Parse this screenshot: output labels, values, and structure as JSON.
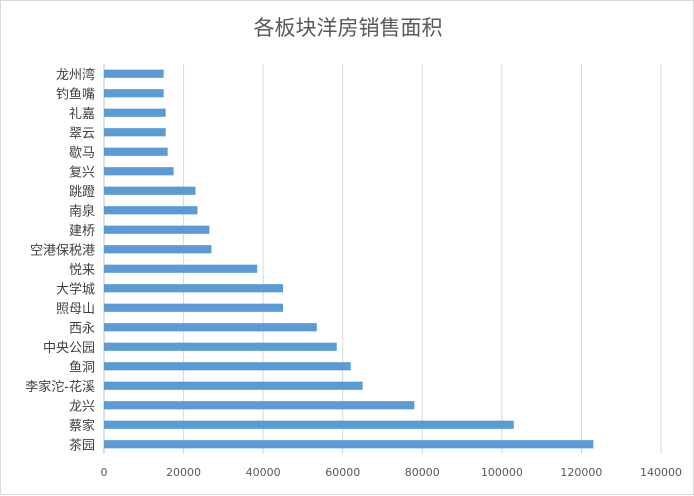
{
  "chart_data": {
    "type": "bar",
    "orientation": "horizontal",
    "title": "各板块洋房销售面积",
    "xlabel": "",
    "ylabel": "",
    "categories": [
      "茶园",
      "蔡家",
      "龙兴",
      "李家沱-花溪",
      "鱼洞",
      "中央公园",
      "西永",
      "照母山",
      "大学城",
      "悦来",
      "空港保税港",
      "建桥",
      "南泉",
      "跳蹬",
      "复兴",
      "歇马",
      "翠云",
      "礼嘉",
      "钓鱼嘴",
      "龙州湾"
    ],
    "values": [
      123000,
      103000,
      78000,
      65000,
      62000,
      58500,
      53500,
      45000,
      45000,
      38500,
      27000,
      26500,
      23500,
      23000,
      17500,
      16000,
      15500,
      15500,
      15000,
      15000
    ],
    "xlim": [
      0,
      140000
    ],
    "xticks": [
      "0",
      "20000",
      "40000",
      "60000",
      "80000",
      "100000",
      "120000",
      "140000"
    ],
    "grid": true,
    "legend": "none",
    "bar_color": "#5b9bd5"
  }
}
